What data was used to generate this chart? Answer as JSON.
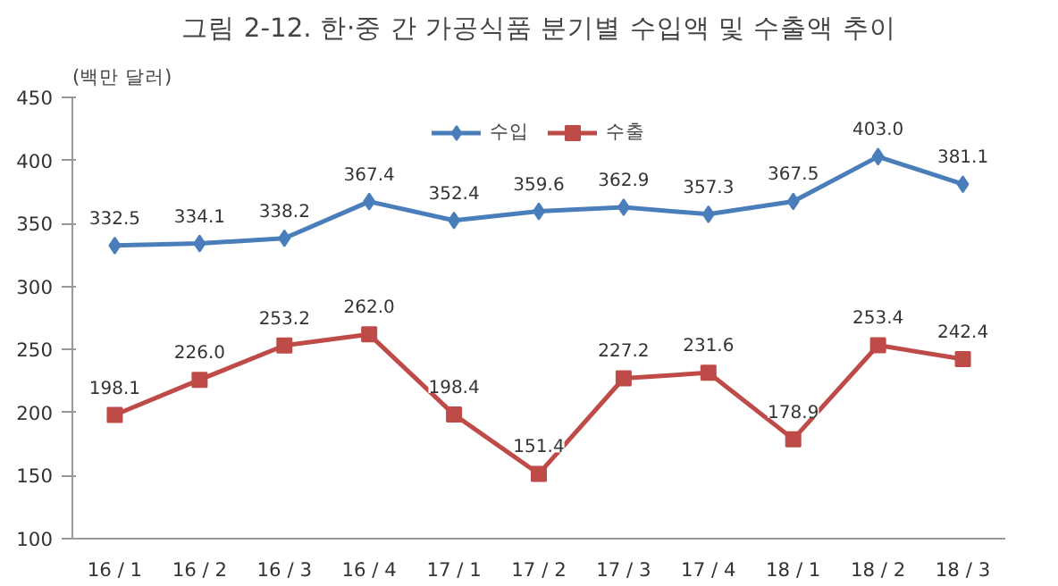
{
  "chart_data": {
    "type": "line",
    "title": "그림 2-12. 한·중 간 가공식품 분기별 수입액 및 수출액 추이",
    "ylabel": "(백만 달러)",
    "categories": [
      "16 / 1",
      "16 / 2",
      "16 / 3",
      "16 / 4",
      "17 / 1",
      "17 / 2",
      "17 / 3",
      "17 / 4",
      "18 / 1",
      "18 / 2",
      "18 / 3"
    ],
    "series": [
      {
        "name": "수입",
        "color": "#4a7ebb",
        "marker": "diamond",
        "values": [
          332.5,
          334.1,
          338.2,
          367.4,
          352.4,
          359.6,
          362.9,
          357.3,
          367.5,
          403.0,
          381.1
        ],
        "value_labels": [
          "332.5",
          "334.1",
          "338.2",
          "367.4",
          "352.4",
          "359.6",
          "362.9",
          "357.3",
          "367.5",
          "403.0",
          "381.1"
        ]
      },
      {
        "name": "수출",
        "color": "#be4b48",
        "marker": "square",
        "values": [
          198.1,
          226.0,
          253.2,
          262.0,
          198.4,
          151.4,
          227.2,
          231.6,
          178.9,
          253.4,
          242.4
        ],
        "value_labels": [
          "198.1",
          "226.0",
          "253.2",
          "262.0",
          "198.4",
          "151.4",
          "227.2",
          "231.6",
          "178.9",
          "253.4",
          "242.4"
        ]
      }
    ],
    "ylim": [
      100,
      450
    ],
    "yticks": [
      100,
      150,
      200,
      250,
      300,
      350,
      400,
      450
    ],
    "grid": false,
    "legend": "top",
    "line_style": "solid"
  }
}
